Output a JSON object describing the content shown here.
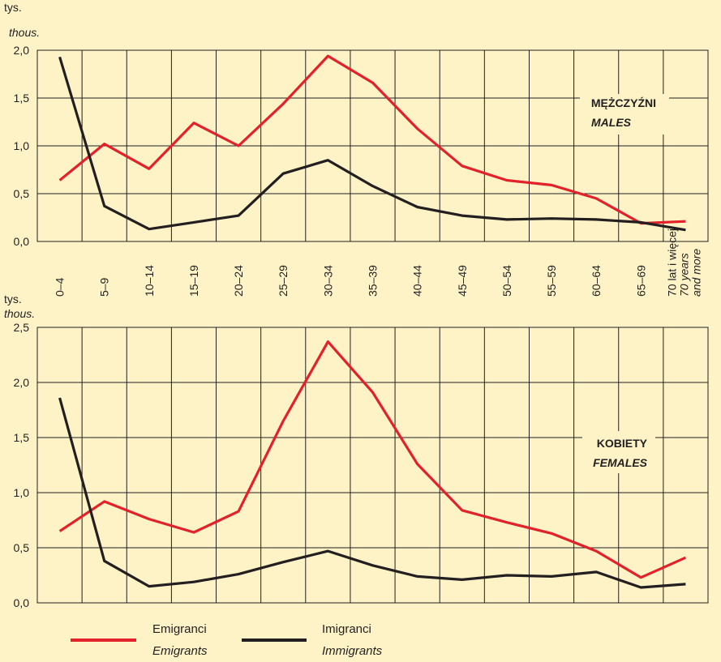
{
  "categories_axis": {
    "labels": [
      "0–4",
      "5–9",
      "10–14",
      "15–19",
      "20–24",
      "25–29",
      "30–34",
      "35–39",
      "40–44",
      "45–49",
      "50–54",
      "55–59",
      "60–64",
      "65–69"
    ],
    "last_label": {
      "line1": "70 lat i więcej",
      "line2": "70 years",
      "line3": "and more"
    }
  },
  "legend": {
    "emigrants": {
      "label": "Emigranci",
      "label_en": "Emigrants",
      "color": "#e3212b"
    },
    "immigrants": {
      "label": "Imigranci",
      "label_en": "Immigrants",
      "color": "#231f20"
    }
  },
  "chart_data": [
    {
      "type": "line",
      "title": "MĘŻCZYŹNI",
      "title_en": "MALES",
      "ylabel": "tys.",
      "ylabel_en": "thous.",
      "ylim": [
        0,
        2.0
      ],
      "yticks": [
        "0,0",
        "0,5",
        "1,0",
        "1,5",
        "2,0"
      ],
      "grid": true,
      "categories": [
        "0–4",
        "5–9",
        "10–14",
        "15–19",
        "20–24",
        "25–29",
        "30–34",
        "35–39",
        "40–44",
        "45–49",
        "50–54",
        "55–59",
        "60–64",
        "65–69",
        "70 lat i więcej"
      ],
      "series": [
        {
          "name": "Emigranci",
          "values": [
            0.64,
            1.02,
            0.76,
            1.24,
            1.0,
            1.44,
            1.94,
            1.66,
            1.18,
            0.79,
            0.64,
            0.59,
            0.45,
            0.19,
            0.21
          ]
        },
        {
          "name": "Imigranci",
          "values": [
            1.93,
            0.37,
            0.13,
            0.2,
            0.27,
            0.71,
            0.85,
            0.58,
            0.36,
            0.27,
            0.23,
            0.24,
            0.23,
            0.2,
            0.12
          ]
        }
      ]
    },
    {
      "type": "line",
      "title": "KOBIETY",
      "title_en": "FEMALES",
      "ylabel": "tys.",
      "ylabel_en": "thous.",
      "ylim": [
        0,
        2.5
      ],
      "yticks": [
        "0,0",
        "0,5",
        "1,0",
        "1,5",
        "2,0",
        "2,5"
      ],
      "grid": true,
      "categories": [
        "0–4",
        "5–9",
        "10–14",
        "15–19",
        "20–24",
        "25–29",
        "30–34",
        "35–39",
        "40–44",
        "45–49",
        "50–54",
        "55–59",
        "60–64",
        "65–69",
        "70 lat i więcej"
      ],
      "series": [
        {
          "name": "Emigranci",
          "values": [
            0.65,
            0.92,
            0.76,
            0.64,
            0.83,
            1.65,
            2.37,
            1.91,
            1.26,
            0.84,
            0.73,
            0.63,
            0.47,
            0.23,
            0.41
          ]
        },
        {
          "name": "Imigranci",
          "values": [
            1.86,
            0.38,
            0.15,
            0.19,
            0.26,
            0.37,
            0.47,
            0.34,
            0.24,
            0.21,
            0.25,
            0.24,
            0.28,
            0.14,
            0.17
          ]
        }
      ]
    }
  ]
}
